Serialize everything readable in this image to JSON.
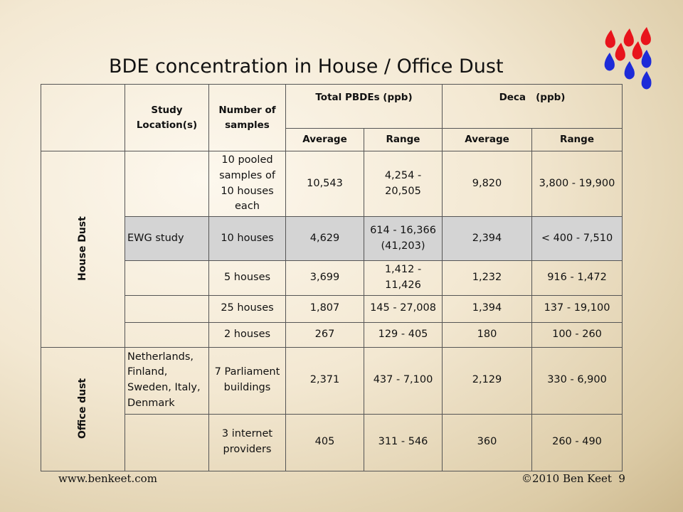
{
  "title": "BDE concentration in House / Office Dust",
  "colors": {
    "drop_red": "#e8141c",
    "drop_blue": "#1d2bd8",
    "shade": "#d4d4d4"
  },
  "table": {
    "headers": {
      "study_location": "Study Location(s)",
      "num_samples": "Number of samples",
      "total_pbdes": "Total PBDEs (ppb)",
      "deca": "Deca   (ppb)",
      "average": "Average",
      "range": "Range"
    },
    "groups": {
      "house": "House Dust",
      "office": "Office dust"
    },
    "rows": [
      {
        "location": "",
        "samples": "10 pooled samples of 10 houses each",
        "total_avg": "10,543",
        "total_range": "4,254 - 20,505",
        "deca_avg": "9,820",
        "deca_range": "3,800 - 19,900"
      },
      {
        "location": "EWG study",
        "samples": "10 houses",
        "total_avg": "4,629",
        "total_range": "614 - 16,366 (41,203)",
        "deca_avg": "2,394",
        "deca_range": "< 400 - 7,510"
      },
      {
        "location": "",
        "samples": "5 houses",
        "total_avg": "3,699",
        "total_range": "1,412 - 11,426",
        "deca_avg": "1,232",
        "deca_range": "916 - 1,472"
      },
      {
        "location": "",
        "samples": "25 houses",
        "total_avg": "1,807",
        "total_range": "145 - 27,008",
        "deca_avg": "1,394",
        "deca_range": "137 - 19,100"
      },
      {
        "location": "",
        "samples": "2 houses",
        "total_avg": "267",
        "total_range": "129 - 405",
        "deca_avg": "180",
        "deca_range": "100 - 260"
      },
      {
        "location": "Netherlands, Finland, Sweden, Italy, Denmark",
        "samples": "7 Parliament buildings",
        "total_avg": "2,371",
        "total_range": "437 - 7,100",
        "deca_avg": "2,129",
        "deca_range": "330 - 6,900"
      },
      {
        "location": "",
        "samples": "3 internet providers",
        "total_avg": "405",
        "total_range": "311 - 546",
        "deca_avg": "360",
        "deca_range": "260 - 490"
      }
    ]
  },
  "footer": {
    "website": "www.benkeet.com",
    "copyright": "©2010 Ben Keet  9"
  }
}
